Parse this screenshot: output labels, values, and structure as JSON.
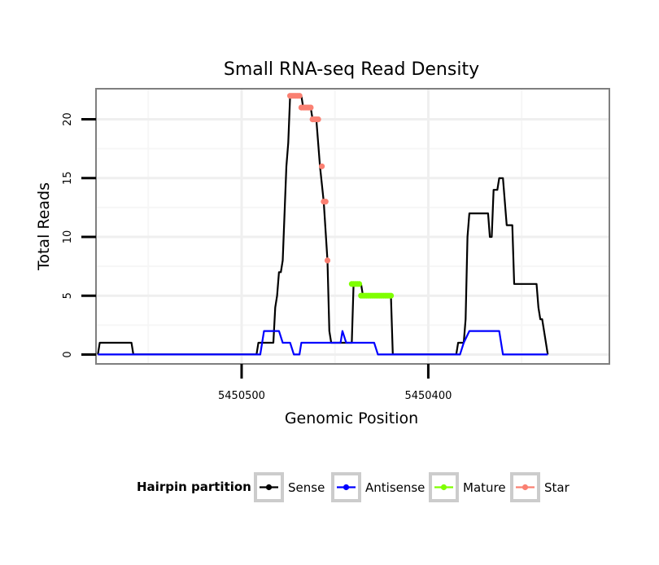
{
  "chart_data": {
    "type": "line",
    "title": "Small RNA-seq Read Density",
    "xlabel": "Genomic Position",
    "ylabel": "Total Reads",
    "x_reversed": true,
    "xlim": [
      5450578,
      5450303
    ],
    "ylim": [
      -0.8,
      22.6
    ],
    "x_ticks": [
      {
        "value": 5450500,
        "label": "5450500"
      },
      {
        "value": 5450400,
        "label": "5450400"
      }
    ],
    "x_minor_ticks": [
      5450550,
      5450450,
      5450350
    ],
    "y_ticks": [
      {
        "value": 0,
        "label": "0"
      },
      {
        "value": 5,
        "label": "5"
      },
      {
        "value": 10,
        "label": "10"
      },
      {
        "value": 15,
        "label": "15"
      },
      {
        "value": 20,
        "label": "20"
      }
    ],
    "y_minor_ticks": [
      2.5,
      7.5,
      12.5,
      17.5
    ],
    "grid": true,
    "legend": {
      "title": "Hairpin partition",
      "position": "bottom",
      "entries": [
        {
          "name": "Sense",
          "color": "#000000"
        },
        {
          "name": "Antisense",
          "color": "#0000ff"
        },
        {
          "name": "Mature",
          "color": "#7fff00"
        },
        {
          "name": "Star",
          "color": "#fa8072"
        }
      ]
    },
    "series": [
      {
        "name": "Sense",
        "color": "#000000",
        "style": "line",
        "points": [
          [
            5450577,
            0
          ],
          [
            5450576,
            1
          ],
          [
            5450559,
            1
          ],
          [
            5450558,
            0
          ],
          [
            5450492,
            0
          ],
          [
            5450491,
            1
          ],
          [
            5450483,
            1
          ],
          [
            5450482,
            4
          ],
          [
            5450481,
            5
          ],
          [
            5450480,
            7
          ],
          [
            5450479,
            7
          ],
          [
            5450478,
            8
          ],
          [
            5450476,
            16
          ],
          [
            5450475,
            18
          ],
          [
            5450474,
            22
          ],
          [
            5450468,
            22
          ],
          [
            5450467,
            21
          ],
          [
            5450463,
            21
          ],
          [
            5450462,
            20
          ],
          [
            5450460,
            20
          ],
          [
            5450458,
            16
          ],
          [
            5450456,
            13
          ],
          [
            5450454,
            8
          ],
          [
            5450453,
            2
          ],
          [
            5450452,
            1
          ],
          [
            5450441,
            1
          ],
          [
            5450440,
            6
          ],
          [
            5450436,
            6
          ],
          [
            5450435,
            5
          ],
          [
            5450420,
            5
          ],
          [
            5450419,
            0
          ],
          [
            5450385,
            0
          ],
          [
            5450384,
            1
          ],
          [
            5450381,
            1
          ],
          [
            5450380,
            3
          ],
          [
            5450379,
            10
          ],
          [
            5450378,
            12
          ],
          [
            5450368,
            12
          ],
          [
            5450367,
            10
          ],
          [
            5450366,
            10
          ],
          [
            5450365,
            14
          ],
          [
            5450363,
            14
          ],
          [
            5450362,
            15
          ],
          [
            5450360,
            15
          ],
          [
            5450359,
            13
          ],
          [
            5450358,
            11
          ],
          [
            5450355,
            11
          ],
          [
            5450354,
            6
          ],
          [
            5450342,
            6
          ],
          [
            5450341,
            4
          ],
          [
            5450340,
            3
          ],
          [
            5450339,
            3
          ],
          [
            5450336,
            0
          ]
        ]
      },
      {
        "name": "Antisense",
        "color": "#0000ff",
        "style": "line",
        "points": [
          [
            5450577,
            0
          ],
          [
            5450490,
            0
          ],
          [
            5450488,
            2
          ],
          [
            5450480,
            2
          ],
          [
            5450478,
            1
          ],
          [
            5450474,
            1
          ],
          [
            5450472,
            0
          ],
          [
            5450469,
            0
          ],
          [
            5450468,
            1
          ],
          [
            5450455,
            1
          ],
          [
            5450453,
            1
          ],
          [
            5450447,
            1
          ],
          [
            5450446,
            2
          ],
          [
            5450444,
            1
          ],
          [
            5450429,
            1
          ],
          [
            5450427,
            0
          ],
          [
            5450383,
            0
          ],
          [
            5450381,
            1
          ],
          [
            5450378,
            2
          ],
          [
            5450362,
            2
          ],
          [
            5450360,
            0
          ],
          [
            5450336,
            0
          ]
        ]
      },
      {
        "name": "Mature",
        "color": "#7fff00",
        "style": "points",
        "points": [
          [
            5450441,
            6
          ],
          [
            5450440,
            6
          ],
          [
            5450439,
            6
          ],
          [
            5450438,
            6
          ],
          [
            5450437,
            6
          ],
          [
            5450436,
            5
          ],
          [
            5450435,
            5
          ],
          [
            5450434,
            5
          ],
          [
            5450433,
            5
          ],
          [
            5450432,
            5
          ],
          [
            5450431,
            5
          ],
          [
            5450430,
            5
          ],
          [
            5450429,
            5
          ],
          [
            5450428,
            5
          ],
          [
            5450427,
            5
          ],
          [
            5450426,
            5
          ],
          [
            5450425,
            5
          ],
          [
            5450424,
            5
          ],
          [
            5450423,
            5
          ],
          [
            5450422,
            5
          ],
          [
            5450421,
            5
          ],
          [
            5450420,
            5
          ]
        ]
      },
      {
        "name": "Star",
        "color": "#fa8072",
        "style": "points",
        "points": [
          [
            5450474,
            22
          ],
          [
            5450473,
            22
          ],
          [
            5450472,
            22
          ],
          [
            5450471,
            22
          ],
          [
            5450470,
            22
          ],
          [
            5450469,
            22
          ],
          [
            5450468,
            21
          ],
          [
            5450467,
            21
          ],
          [
            5450466,
            21
          ],
          [
            5450465,
            21
          ],
          [
            5450464,
            21
          ],
          [
            5450463,
            21
          ],
          [
            5450462,
            20
          ],
          [
            5450461,
            20
          ],
          [
            5450460,
            20
          ],
          [
            5450459,
            20
          ],
          [
            5450457,
            16
          ],
          [
            5450456,
            13
          ],
          [
            5450455,
            13
          ],
          [
            5450454,
            8
          ]
        ]
      }
    ]
  }
}
